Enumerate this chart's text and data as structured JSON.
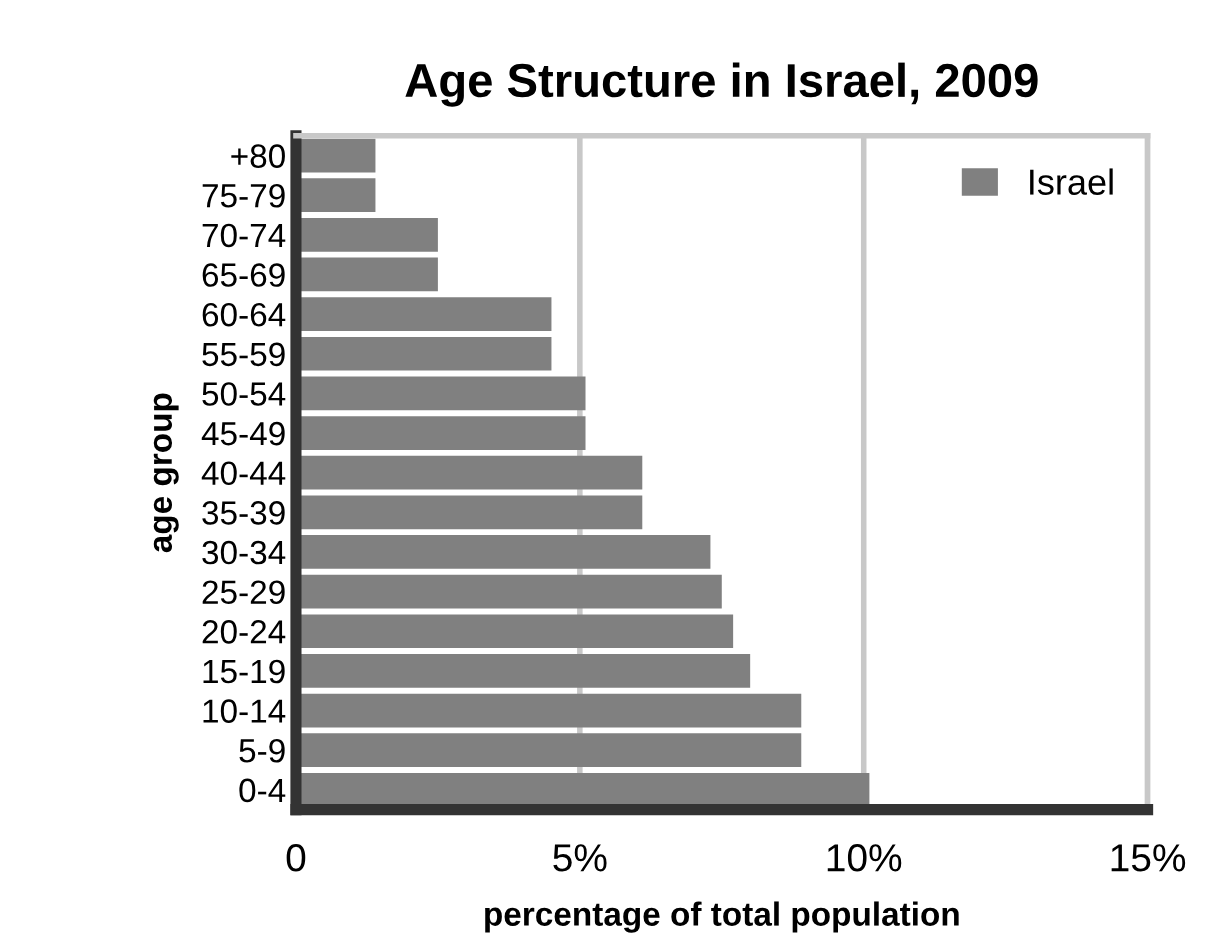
{
  "chart_data": {
    "type": "bar",
    "orientation": "horizontal",
    "title": "Age Structure in Israel, 2009",
    "xlabel": "percentage of total population",
    "ylabel": "age group",
    "categories": [
      "+80",
      "75-79",
      "70-74",
      "65-69",
      "60-64",
      "55-59",
      "50-54",
      "45-49",
      "40-44",
      "35-39",
      "30-34",
      "25-29",
      "20-24",
      "15-19",
      "10-14",
      "5-9",
      "0-4"
    ],
    "series": [
      {
        "name": "Israel",
        "color": "#808080",
        "values": [
          1.4,
          1.4,
          2.5,
          2.5,
          4.5,
          4.5,
          5.1,
          5.1,
          6.1,
          6.1,
          7.3,
          7.5,
          7.7,
          8.0,
          8.9,
          8.9,
          10.1
        ]
      }
    ],
    "xlim": [
      0,
      15
    ],
    "xticks": [
      0,
      {
        "value": 5,
        "label": "5%"
      },
      {
        "value": 10,
        "label": "10%"
      },
      {
        "value": 15,
        "label": "15%"
      }
    ],
    "grid": "x",
    "legend": "top right"
  }
}
